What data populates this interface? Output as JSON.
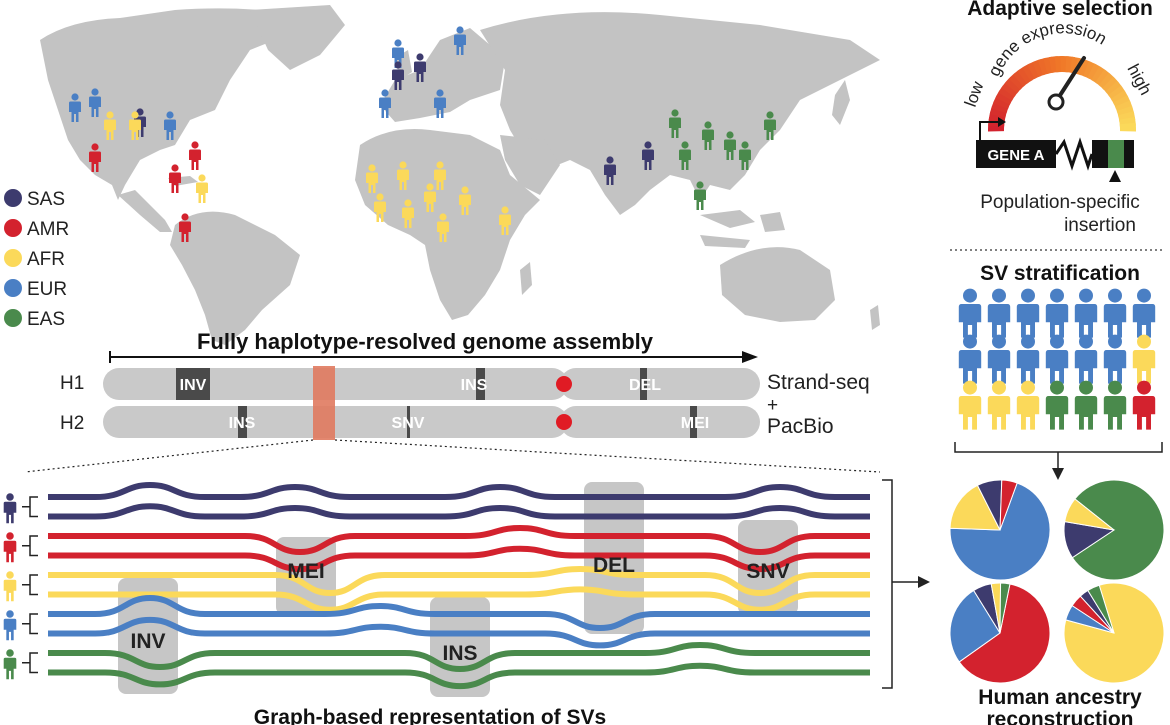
{
  "colors": {
    "SAS": "#3d3b6e",
    "AMR": "#d3222e",
    "AFR": "#fbd95a",
    "EUR": "#4a7fc4",
    "EAS": "#4a8a4c",
    "map": "#c3c3c3",
    "chromosome": "#c9c9c9",
    "marker_dark": "#4a4a4a",
    "centromere": "#e01b24",
    "highlight": "#e07a5f",
    "sv_box": "#b8b8b8"
  },
  "legend": [
    {
      "code": "SAS",
      "label": "SAS"
    },
    {
      "code": "AMR",
      "label": "AMR"
    },
    {
      "code": "AFR",
      "label": "AFR"
    },
    {
      "code": "EUR",
      "label": "EUR"
    },
    {
      "code": "EAS",
      "label": "EAS"
    }
  ],
  "assembly": {
    "title": "Fully haplotype-resolved genome assembly",
    "h1_label": "H1",
    "h2_label": "H2",
    "h1_markers": [
      "INV",
      "INS",
      "DEL"
    ],
    "h2_markers": [
      "INS",
      "SNV",
      "MEI"
    ],
    "tech_line1": "Strand-seq",
    "tech_line2": "+",
    "tech_line3": "PacBio"
  },
  "adaptive": {
    "title": "Adaptive selection",
    "gauge_label": "gene expression",
    "low": "low",
    "high": "high",
    "gene": "GENE A",
    "caption_line1": "Population-specific",
    "caption_line2": "insertion"
  },
  "stratification": {
    "title": "SV stratification",
    "rows": [
      [
        "EUR",
        "EUR",
        "EUR",
        "EUR",
        "EUR",
        "EUR",
        "EUR"
      ],
      [
        "EUR",
        "EUR",
        "EUR",
        "EUR",
        "EUR",
        "EUR",
        "AFR"
      ],
      [
        "AFR",
        "AFR",
        "AFR",
        "EAS",
        "EAS",
        "EAS",
        "AMR"
      ]
    ]
  },
  "graph": {
    "title": "Graph-based representation of SVs",
    "svs": [
      "INV",
      "MEI",
      "INS",
      "DEL",
      "SNV"
    ]
  },
  "ancestry": {
    "title_line1": "Human ancestry",
    "title_line2": "reconstruction",
    "pies": [
      [
        {
          "pop": "EUR",
          "value": 0.7
        },
        {
          "pop": "AFR",
          "value": 0.17
        },
        {
          "pop": "SAS",
          "value": 0.08
        },
        {
          "pop": "AMR",
          "value": 0.05
        }
      ],
      [
        {
          "pop": "EAS",
          "value": 0.8
        },
        {
          "pop": "SAS",
          "value": 0.12
        },
        {
          "pop": "AFR",
          "value": 0.08
        }
      ],
      [
        {
          "pop": "AMR",
          "value": 0.62
        },
        {
          "pop": "EUR",
          "value": 0.26
        },
        {
          "pop": "SAS",
          "value": 0.06
        },
        {
          "pop": "AFR",
          "value": 0.03
        },
        {
          "pop": "EAS",
          "value": 0.03
        }
      ],
      [
        {
          "pop": "AFR",
          "value": 0.84
        },
        {
          "pop": "EUR",
          "value": 0.05
        },
        {
          "pop": "AMR",
          "value": 0.04
        },
        {
          "pop": "SAS",
          "value": 0.03
        },
        {
          "pop": "EAS",
          "value": 0.04
        }
      ]
    ]
  }
}
